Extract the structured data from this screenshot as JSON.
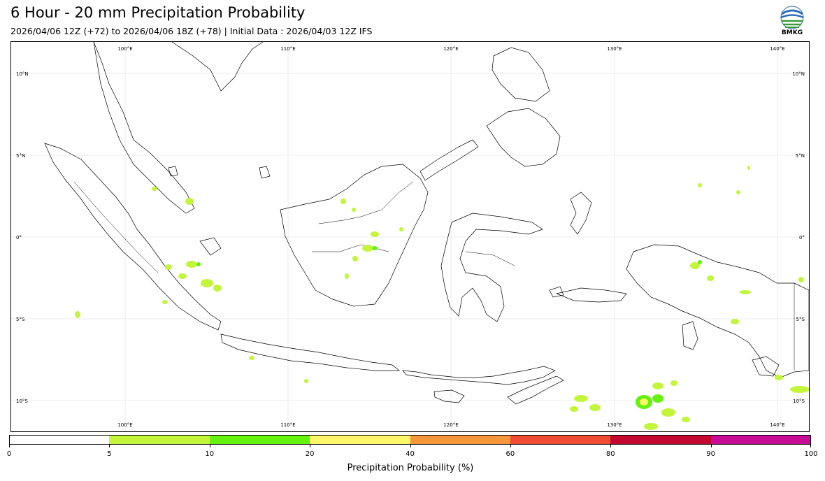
{
  "header": {
    "title": "6 Hour - 20 mm Precipitation Probability",
    "subtitle": "2026/04/06 12Z (+72) to 2026/04/06 18Z (+78) | Initial Data : 2026/04/03 12Z IFS"
  },
  "logo": {
    "text": "BMKG",
    "icon": "bmkg-logo-icon"
  },
  "map": {
    "lon_labels": [
      "100°E",
      "110°E",
      "120°E",
      "130°E",
      "140°E"
    ],
    "lat_labels": [
      "10°N",
      "5°N",
      "0°",
      "5°S",
      "10°S"
    ],
    "colors": {
      "coast": "#000000",
      "grid": "#e6e6e6",
      "low": "#c3f53a",
      "mid": "#66f20f",
      "high": "#fff76a"
    }
  },
  "colorbar": {
    "title": "Precipitation Probability (%)",
    "ticks": [
      "0",
      "5",
      "10",
      "20",
      "40",
      "60",
      "80",
      "90",
      "100"
    ],
    "colors": [
      "#ffffff",
      "#c3f53a",
      "#66f20f",
      "#fff76a",
      "#f6963a",
      "#f04c32",
      "#c4072f",
      "#c80c96"
    ]
  }
}
